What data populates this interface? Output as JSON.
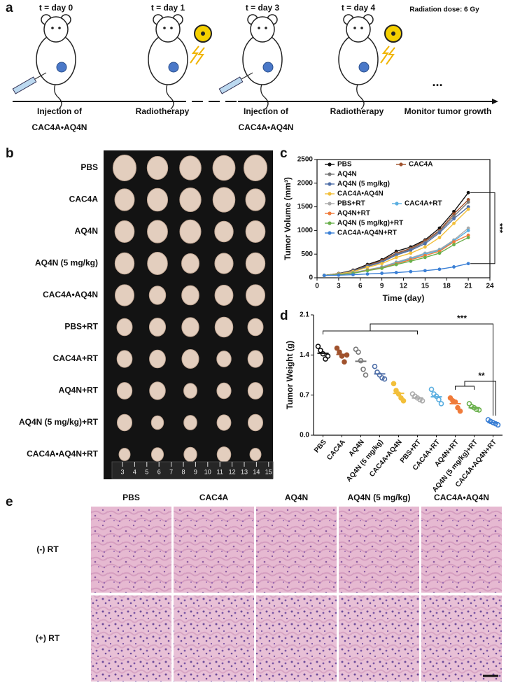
{
  "panel_labels": [
    "a",
    "b",
    "c",
    "d",
    "e"
  ],
  "panel_a": {
    "timepoints": [
      "t = day 0",
      "t = day 1",
      "t = day 3",
      "t = day 4"
    ],
    "dose": "Radiation dose: 6 Gy",
    "steps": [
      [
        "Injection of",
        "CAC4A•AQ4N"
      ],
      [
        "Radiotherapy"
      ],
      [
        "Injection of",
        "CAC4A•AQ4N"
      ],
      [
        "Radiotherapy"
      ],
      [
        "Monitor tumor growth"
      ]
    ],
    "ellipsis": "..."
  },
  "panel_b": {
    "groups": [
      "PBS",
      "CAC4A",
      "AQ4N",
      "AQ4N (5 mg/kg)",
      "CAC4A•AQ4N",
      "PBS+RT",
      "CAC4A+RT",
      "AQ4N+RT",
      "AQ4N (5 mg/kg)+RT",
      "CAC4A•AQ4N+RT"
    ],
    "ruler": [
      3,
      4,
      5,
      6,
      7,
      8,
      9,
      10,
      11,
      12,
      13,
      14,
      15
    ]
  },
  "chart_data": [
    {
      "type": "line",
      "xlabel": "Time (day)",
      "ylabel": "Tumor Volume (mm³)",
      "x": [
        1,
        3,
        5,
        7,
        9,
        11,
        13,
        15,
        17,
        19,
        21
      ],
      "xlim": [
        0,
        24
      ],
      "xticks": [
        0,
        3,
        6,
        9,
        12,
        15,
        18,
        21,
        24
      ],
      "ylim": [
        0,
        2500
      ],
      "yticks": [
        0,
        500,
        1000,
        1500,
        2000,
        2500
      ],
      "annotation": "***",
      "series": [
        {
          "name": "PBS",
          "color": "#111111",
          "values": [
            50,
            90,
            160,
            280,
            380,
            560,
            650,
            800,
            1050,
            1400,
            1800
          ]
        },
        {
          "name": "CAC4A",
          "color": "#a0522d",
          "values": [
            50,
            85,
            150,
            260,
            360,
            520,
            620,
            780,
            1000,
            1350,
            1650
          ]
        },
        {
          "name": "AQ4N",
          "color": "#777777",
          "values": [
            50,
            85,
            145,
            250,
            340,
            500,
            600,
            750,
            980,
            1300,
            1600
          ]
        },
        {
          "name": "AQ4N (5 mg/kg)",
          "color": "#4f6fa8",
          "values": [
            50,
            80,
            140,
            240,
            330,
            480,
            580,
            720,
            950,
            1250,
            1500
          ]
        },
        {
          "name": "CAC4A•AQ4N",
          "color": "#f2bf3a",
          "values": [
            50,
            80,
            130,
            220,
            300,
            430,
            520,
            650,
            850,
            1150,
            1450
          ]
        },
        {
          "name": "PBS+RT",
          "color": "#aaaaaa",
          "values": [
            50,
            70,
            110,
            170,
            230,
            330,
            420,
            520,
            600,
            800,
            1050
          ]
        },
        {
          "name": "CAC4A+RT",
          "color": "#5aaee0",
          "values": [
            50,
            70,
            105,
            165,
            220,
            320,
            400,
            500,
            580,
            780,
            1000
          ]
        },
        {
          "name": "AQ4N+RT",
          "color": "#f07b3a",
          "values": [
            50,
            70,
            100,
            160,
            210,
            300,
            380,
            470,
            560,
            760,
            900
          ]
        },
        {
          "name": "AQ4N (5 mg/kg)+RT",
          "color": "#6ab04c",
          "values": [
            50,
            65,
            95,
            150,
            200,
            280,
            350,
            430,
            520,
            700,
            850
          ]
        },
        {
          "name": "CAC4A•AQ4N+RT",
          "color": "#3a7fd5",
          "values": [
            50,
            55,
            65,
            80,
            95,
            110,
            130,
            150,
            180,
            230,
            300
          ]
        }
      ]
    },
    {
      "type": "dot",
      "ylabel": "Tumor Weight (g)",
      "categories": [
        "PBS",
        "CAC4A",
        "AQ4N",
        "AQ4N (5 mg/kg)",
        "CAC4A•AQ4N",
        "PBS+RT",
        "CAC4A+RT",
        "AQ4N+RT",
        "AQ4N (5 mg/kg)+RT",
        "CAC4A•AQ4N+RT"
      ],
      "colors": [
        "#111111",
        "#a0522d",
        "#777777",
        "#4f6fa8",
        "#f2bf3a",
        "#aaaaaa",
        "#5aaee0",
        "#f07b3a",
        "#6ab04c",
        "#3a7fd5"
      ],
      "values": [
        1.43,
        1.41,
        1.29,
        1.07,
        0.73,
        0.65,
        0.67,
        0.55,
        0.48,
        0.22
      ],
      "points": [
        [
          1.55,
          1.48,
          1.42,
          1.33,
          1.38
        ],
        [
          1.52,
          1.45,
          1.38,
          1.28,
          1.4
        ],
        [
          1.5,
          1.45,
          1.3,
          1.15,
          1.05
        ],
        [
          1.2,
          1.1,
          1.05,
          1.0,
          0.98
        ],
        [
          0.9,
          0.78,
          0.72,
          0.65,
          0.6
        ],
        [
          0.72,
          0.68,
          0.65,
          0.62,
          0.6
        ],
        [
          0.8,
          0.72,
          0.68,
          0.62,
          0.55
        ],
        [
          0.65,
          0.6,
          0.58,
          0.48,
          0.42
        ],
        [
          0.55,
          0.5,
          0.48,
          0.45,
          0.44
        ],
        [
          0.27,
          0.24,
          0.22,
          0.2,
          0.18
        ]
      ],
      "ylim": [
        0,
        2.1
      ],
      "yticks": [
        {
          "value": 0,
          "label": "0.0"
        },
        0.7,
        1.4,
        2.1
      ],
      "annotations": [
        "***",
        "**"
      ]
    }
  ],
  "panel_e": {
    "columns": [
      "PBS",
      "CAC4A",
      "AQ4N",
      "AQ4N (5 mg/kg)",
      "CAC4A•AQ4N"
    ],
    "rows": [
      "(-) RT",
      "(+) RT"
    ]
  }
}
